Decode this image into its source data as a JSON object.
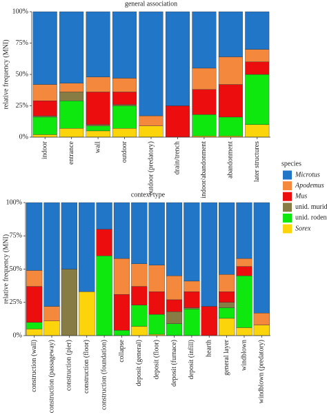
{
  "legend": {
    "title": "species",
    "names": [
      "Microtus",
      "Apodemus",
      "Mus",
      "unid. murid",
      "unid. rodent",
      "Sorex"
    ],
    "italic": [
      true,
      true,
      true,
      false,
      false,
      true
    ],
    "colors": [
      "#2176c8",
      "#f4883c",
      "#ec0e0e",
      "#867c44",
      "#0ee80e",
      "#fcd40c"
    ]
  },
  "chart_data": [
    {
      "type": "stacked_bar",
      "title": "general association",
      "y_label": "relative frequency (MNI)",
      "categories": [
        "indoor",
        "entrance",
        "wall",
        "outdoor",
        "outdoor (predatory)",
        "drain/trench",
        "indoor/abandonment",
        "abandonment",
        "later structures"
      ],
      "ylim": [
        0,
        100
      ],
      "yticks": [
        {
          "value": 0,
          "label": "0%"
        },
        {
          "value": 25,
          "label": "25%"
        },
        {
          "value": 50,
          "label": "50%"
        },
        {
          "value": 75,
          "label": "75%"
        },
        {
          "value": 100,
          "label": "100%"
        }
      ],
      "series": [
        {
          "values": [
            58,
            57,
            52,
            53,
            83,
            75,
            45,
            36,
            30
          ]
        },
        {
          "values": [
            13,
            7,
            12,
            11,
            8,
            0,
            17,
            22,
            10
          ]
        },
        {
          "values": [
            12,
            0,
            26,
            10,
            0,
            25,
            20,
            26,
            10
          ]
        },
        {
          "values": [
            1,
            7,
            1,
            1,
            0,
            0,
            0,
            0,
            0
          ]
        },
        {
          "values": [
            14,
            22,
            4,
            18,
            0,
            0,
            17,
            15,
            40
          ]
        },
        {
          "values": [
            2,
            7,
            5,
            7,
            9,
            0,
            1,
            1,
            10
          ]
        }
      ]
    },
    {
      "type": "stacked_bar",
      "title": "context type",
      "y_label": "relative frequency (MNI)",
      "categories": [
        "construction (wall)",
        "construction (passageway)",
        "construction (pier)",
        "construction (floor)",
        "construction (foundation)",
        "collapse",
        "deposit (general)",
        "deposit (floor)",
        "deposit (furnace)",
        "deposit (infill)",
        "hearth",
        "general layer",
        "windblown",
        "windblown (predatory)"
      ],
      "ylim": [
        0,
        100
      ],
      "yticks": [
        {
          "value": 0,
          "label": "0%"
        },
        {
          "value": 25,
          "label": "25%"
        },
        {
          "value": 50,
          "label": "50%"
        },
        {
          "value": 75,
          "label": "75%"
        },
        {
          "value": 100,
          "label": "100%"
        }
      ],
      "series": [
        {
          "values": [
            51,
            78,
            50,
            67,
            20,
            42,
            46,
            47,
            55,
            59,
            78,
            54,
            42,
            83
          ]
        },
        {
          "values": [
            12,
            11,
            0,
            0,
            0,
            27,
            17,
            20,
            18,
            8,
            0,
            13,
            6,
            9
          ]
        },
        {
          "values": [
            27,
            0,
            0,
            0,
            20,
            27,
            14,
            17,
            9,
            12,
            22,
            8,
            7,
            0
          ]
        },
        {
          "values": [
            0,
            0,
            50,
            0,
            0,
            0,
            0,
            0,
            9,
            1,
            0,
            4,
            0,
            0
          ]
        },
        {
          "values": [
            5,
            0,
            0,
            0,
            60,
            4,
            16,
            15,
            9,
            20,
            0,
            8,
            39,
            0
          ]
        },
        {
          "values": [
            5,
            11,
            0,
            33,
            0,
            0,
            7,
            1,
            0,
            0,
            0,
            13,
            6,
            8
          ]
        }
      ]
    }
  ]
}
